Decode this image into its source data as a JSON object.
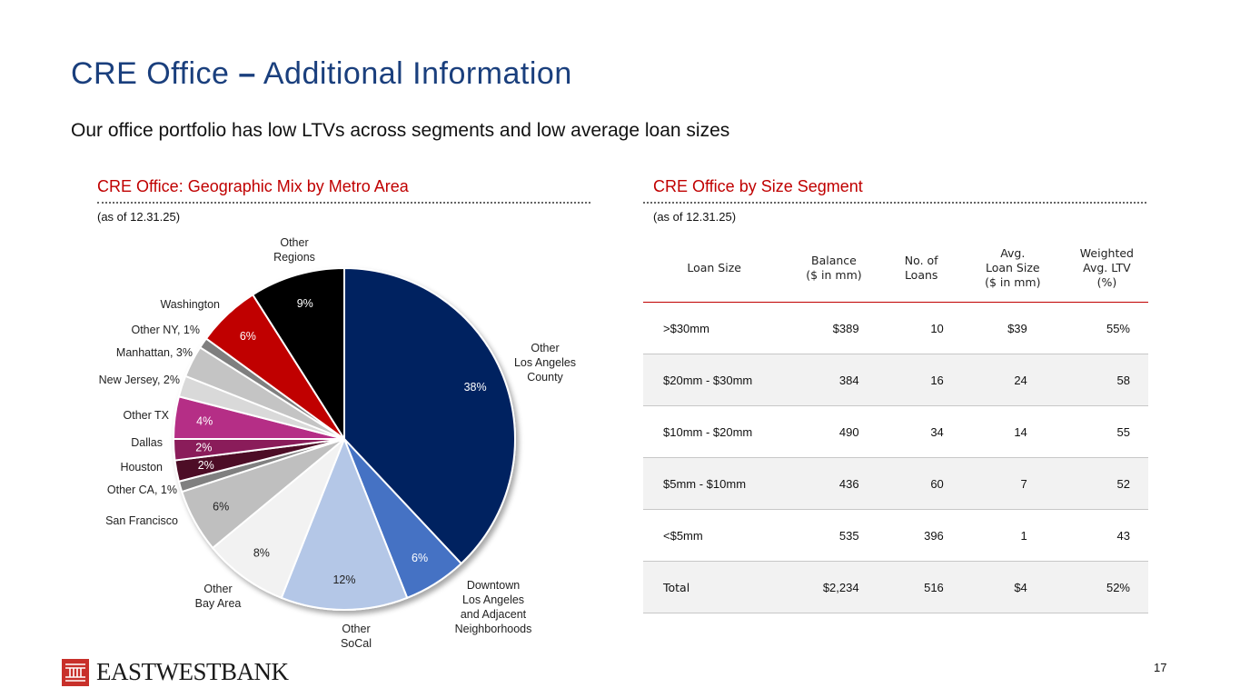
{
  "header": {
    "title_main": "CRE Office",
    "title_dash": "–",
    "title_rest": "Additional Information",
    "subtitle": "Our office portfolio has low LTVs across segments and low average loan sizes"
  },
  "left_section": {
    "title": "CRE Office: Geographic Mix by Metro Area",
    "asof": "(as of 12.31.25)"
  },
  "right_section": {
    "title": "CRE Office by Size Segment",
    "asof": "(as of 12.31.25)"
  },
  "colors": {
    "title": "#1a3f7d",
    "section_title": "#c00000",
    "logo": "#c8302a"
  },
  "chart_data": [
    {
      "type": "pie",
      "title": "CRE Office: Geographic Mix by Metro Area",
      "start_angle_deg": 0,
      "direction": "clockwise",
      "slices": [
        {
          "name": "Other Los Angeles County",
          "value": 38,
          "pct_label": "38%",
          "color": "#002060",
          "pct_color": "#ffffff"
        },
        {
          "name": "Downtown Los Angeles and Adjacent Neighborhoods",
          "value": 6,
          "pct_label": "6%",
          "color": "#4472c4",
          "pct_color": "#ffffff"
        },
        {
          "name": "Other SoCal",
          "value": 12,
          "pct_label": "12%",
          "color": "#b4c7e7",
          "pct_color": "#222222"
        },
        {
          "name": "Other Bay Area",
          "value": 8,
          "pct_label": "8%",
          "color": "#f2f2f2",
          "pct_color": "#222222"
        },
        {
          "name": "San Francisco",
          "value": 6,
          "pct_label": "6%",
          "color": "#bfbfbf",
          "pct_color": "#222222"
        },
        {
          "name": "Other CA, 1%",
          "value": 1,
          "pct_label": "",
          "color": "#808080",
          "pct_color": "#ffffff"
        },
        {
          "name": "Houston",
          "value": 2,
          "pct_label": "2%",
          "color": "#4d0a26",
          "pct_color": "#ffffff"
        },
        {
          "name": "Dallas",
          "value": 2,
          "pct_label": "2%",
          "color": "#8a1a5a",
          "pct_color": "#ffffff"
        },
        {
          "name": "Other TX",
          "value": 4,
          "pct_label": "4%",
          "color": "#b52f86",
          "pct_color": "#ffffff"
        },
        {
          "name": "New Jersey, 2%",
          "value": 2,
          "pct_label": "",
          "color": "#d9d9d9",
          "pct_color": "#222222"
        },
        {
          "name": "Manhattan, 3%",
          "value": 3,
          "pct_label": "",
          "color": "#c4c4c4",
          "pct_color": "#222222"
        },
        {
          "name": "Other NY, 1%",
          "value": 1,
          "pct_label": "",
          "color": "#7f7f7f",
          "pct_color": "#ffffff"
        },
        {
          "name": "Washington",
          "value": 6,
          "pct_label": "6%",
          "color": "#c00000",
          "pct_color": "#ffffff"
        },
        {
          "name": "Other Regions",
          "value": 9,
          "pct_label": "9%",
          "color": "#000000",
          "pct_color": "#ffffff"
        }
      ]
    },
    {
      "type": "table",
      "title": "CRE Office by Size Segment",
      "columns": [
        "Loan Size",
        "Balance\n($ in mm)",
        "No. of\nLoans",
        "Avg.\nLoan Size\n($ in mm)",
        "Weighted\nAvg. LTV\n(%)"
      ],
      "rows": [
        [
          ">$30mm",
          "$389",
          "10",
          "$39",
          "55%"
        ],
        [
          "$20mm - $30mm",
          "384",
          "16",
          "24",
          "58"
        ],
        [
          "$10mm - $20mm",
          "490",
          "34",
          "14",
          "55"
        ],
        [
          "$5mm - $10mm",
          "436",
          "60",
          "7",
          "52"
        ],
        [
          "<$5mm",
          "535",
          "396",
          "1",
          "43"
        ],
        [
          "Total",
          "$2,234",
          "516",
          "$4",
          "52%"
        ]
      ]
    }
  ],
  "footer": {
    "logo_text": "EASTWESTBANK",
    "page_number": "17"
  }
}
